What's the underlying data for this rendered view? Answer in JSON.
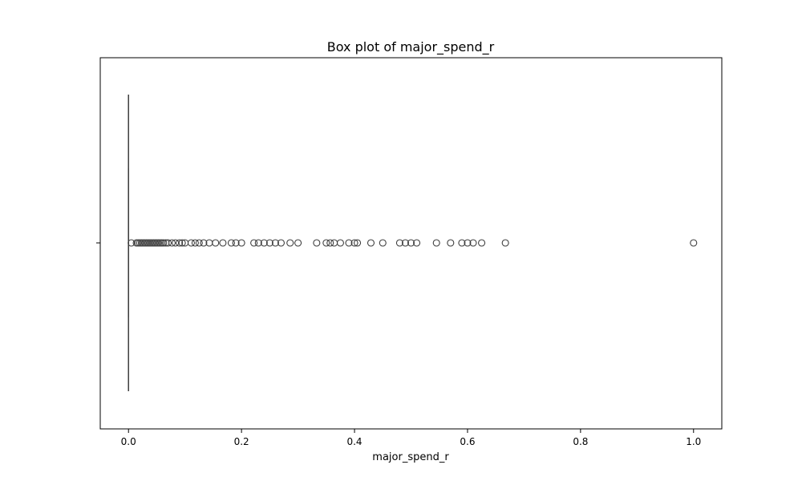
{
  "chart_data": {
    "type": "box",
    "title": "Box plot of major_spend_r",
    "xlabel": "major_spend_r",
    "ylabel": "",
    "xlim": [
      -0.05,
      1.05
    ],
    "x_ticks": [
      0.0,
      0.2,
      0.4,
      0.6,
      0.8,
      1.0
    ],
    "x_tick_labels": [
      "0.0",
      "0.2",
      "0.4",
      "0.6",
      "0.8",
      "1.0"
    ],
    "orientation": "horizontal",
    "grid": false,
    "box": {
      "q1": 0.0,
      "median": 0.0,
      "q3": 0.0,
      "whisker_low": 0.0,
      "whisker_high": 0.0
    },
    "outliers": [
      0.005,
      0.014,
      0.017,
      0.02,
      0.023,
      0.026,
      0.029,
      0.032,
      0.035,
      0.038,
      0.041,
      0.044,
      0.047,
      0.05,
      0.053,
      0.056,
      0.059,
      0.062,
      0.066,
      0.07,
      0.077,
      0.083,
      0.09,
      0.095,
      0.1,
      0.111,
      0.118,
      0.125,
      0.133,
      0.143,
      0.154,
      0.167,
      0.182,
      0.19,
      0.2,
      0.222,
      0.23,
      0.24,
      0.25,
      0.26,
      0.27,
      0.286,
      0.3,
      0.333,
      0.35,
      0.357,
      0.364,
      0.375,
      0.39,
      0.4,
      0.405,
      0.429,
      0.45,
      0.48,
      0.49,
      0.5,
      0.51,
      0.545,
      0.57,
      0.59,
      0.6,
      0.61,
      0.625,
      0.667,
      1.0
    ],
    "colors": {
      "marker_edge": "#3d3d3d",
      "frame": "#000000"
    }
  }
}
